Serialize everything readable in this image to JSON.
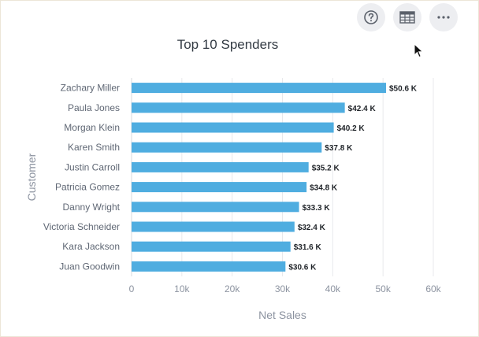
{
  "toolbar": {
    "buttons": [
      {
        "icon": "help-icon",
        "name": "help-button"
      },
      {
        "icon": "table-icon",
        "name": "table-view-button"
      },
      {
        "icon": "more-options-icon",
        "name": "more-options-button"
      }
    ]
  },
  "colors": {
    "bar": "#4fade0",
    "axis_text": "#8c93a0",
    "label_text": "#5f6774",
    "value_text": "#1f2328",
    "grid": "#e8e9ec",
    "title": "#333b44"
  },
  "chart_data": {
    "type": "bar",
    "orientation": "horizontal",
    "title": "Top 10 Spenders",
    "xlabel": "Net Sales",
    "ylabel": "Customer",
    "categories": [
      "Zachary Miller",
      "Paula Jones",
      "Morgan Klein",
      "Karen Smith",
      "Justin Carroll",
      "Patricia Gomez",
      "Danny Wright",
      "Victoria Schneider",
      "Kara Jackson",
      "Juan Goodwin"
    ],
    "values": [
      50600,
      42400,
      40200,
      37800,
      35200,
      34800,
      33300,
      32400,
      31600,
      30600
    ],
    "data_labels": [
      "$50.6 K",
      "$42.4 K",
      "$40.2 K",
      "$37.8 K",
      "$35.2 K",
      "$34.8 K",
      "$33.3 K",
      "$32.4 K",
      "$31.6 K",
      "$30.6 K"
    ],
    "xlim": [
      0,
      60000
    ],
    "xticks": [
      0,
      10000,
      20000,
      30000,
      40000,
      50000,
      60000
    ],
    "xtick_labels": [
      "0",
      "10k",
      "20k",
      "30k",
      "40k",
      "50k",
      "60k"
    ],
    "grid": true,
    "legend": "none"
  }
}
